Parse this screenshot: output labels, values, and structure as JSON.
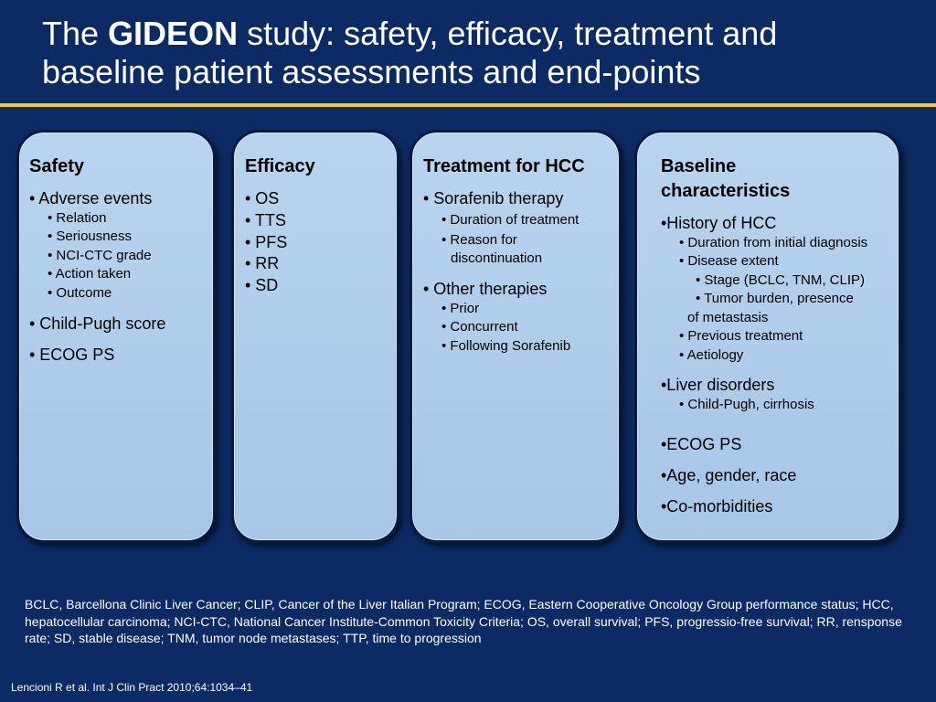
{
  "title": {
    "prefix": "The ",
    "bold": "GIDEON",
    "line1_rest": " study: safety, efficacy, treatment and",
    "line2": "baseline patient assessments and end-points"
  },
  "colors": {
    "background": "#0c2a63",
    "rule": "#f3cc1c",
    "panel": "#a7c6e6"
  },
  "panels": {
    "safety": {
      "title": "Safety",
      "items": [
        "• Adverse events",
        "• Relation",
        "• Seriousness",
        "• NCI-CTC grade",
        "• Action taken",
        "• Outcome",
        "• Child-Pugh score",
        "• ECOG PS"
      ]
    },
    "efficacy": {
      "title": "Efficacy",
      "items": [
        "• OS",
        "• TTS",
        "• PFS",
        "• RR",
        "• SD"
      ]
    },
    "treatment": {
      "title": "Treatment for HCC",
      "items": [
        "• Sorafenib therapy",
        "•  Duration of treatment",
        "• Reason for",
        "discontinuation",
        "• Other therapies",
        "• Prior",
        "• Concurrent",
        "• Following Sorafenib"
      ]
    },
    "baseline": {
      "title_line1": "Baseline",
      "title_line2": "characteristics",
      "items": [
        "•History of HCC",
        "• Duration from initial diagnosis",
        "• Disease extent",
        "• Stage (BCLC, TNM, CLIP)",
        "• Tumor burden, presence",
        "of metastasis",
        "• Previous treatment",
        "• Aetiology",
        "•Liver disorders",
        "• Child-Pugh, cirrhosis",
        "•ECOG PS",
        "•Age, gender, race",
        "•Co-morbidities"
      ]
    }
  },
  "abbreviations": "BCLC, Barcellona Clinic Liver Cancer; CLIP, Cancer of the Liver Italian Program; ECOG, Eastern Cooperative Oncology Group performance status; HCC, hepatocellular carcinoma; NCI-CTC, National Cancer Institute-Common Toxicity Criteria; OS, overall survival; PFS, progressio-free survival; RR, rensponse rate; SD, stable disease; TNM, tumor node metastases; TTP, time to progression",
  "citation": "Lencioni R et al. Int J Clin Pract 2010;64:1034–41"
}
